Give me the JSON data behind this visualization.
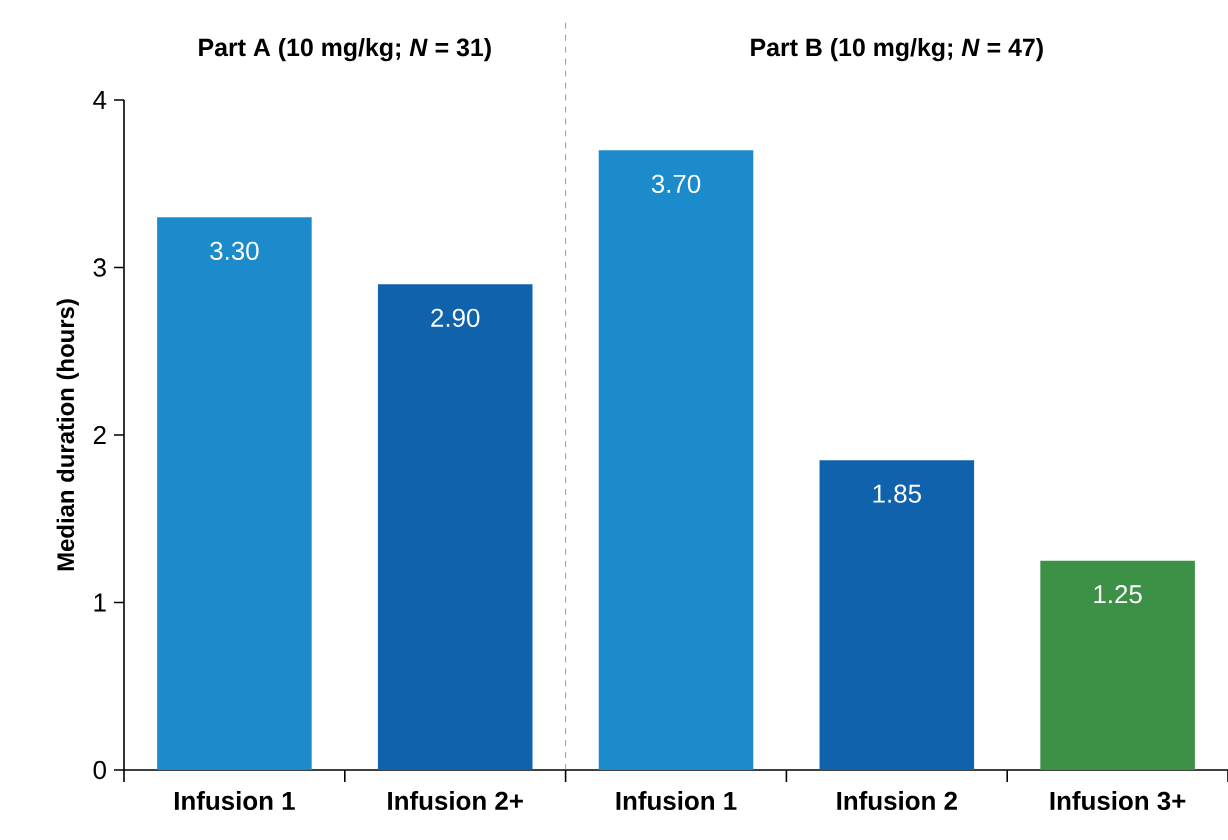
{
  "chart_data": {
    "type": "bar",
    "categories": [
      "Infusion 1",
      "Infusion 2+",
      "Infusion 1",
      "Infusion 2",
      "Infusion 3+"
    ],
    "values": [
      3.3,
      2.9,
      3.7,
      1.85,
      1.25
    ],
    "colors": [
      "#1b8bcb",
      "#1062ad",
      "#1b8bcb",
      "#1062ad",
      "#3c9146"
    ],
    "value_labels": [
      "3.30",
      "2.90",
      "3.70",
      "1.85",
      "1.25"
    ],
    "ylabel": "Median duration (hours)",
    "ylim": [
      0,
      4
    ],
    "yticks": [
      0,
      1,
      2,
      3,
      4
    ],
    "annotations": [
      "**Part A (10 mg/kg; *N* = 31)**",
      "**Part B (10 mg/kg; *N* = 47)**"
    ],
    "grid": false
  }
}
